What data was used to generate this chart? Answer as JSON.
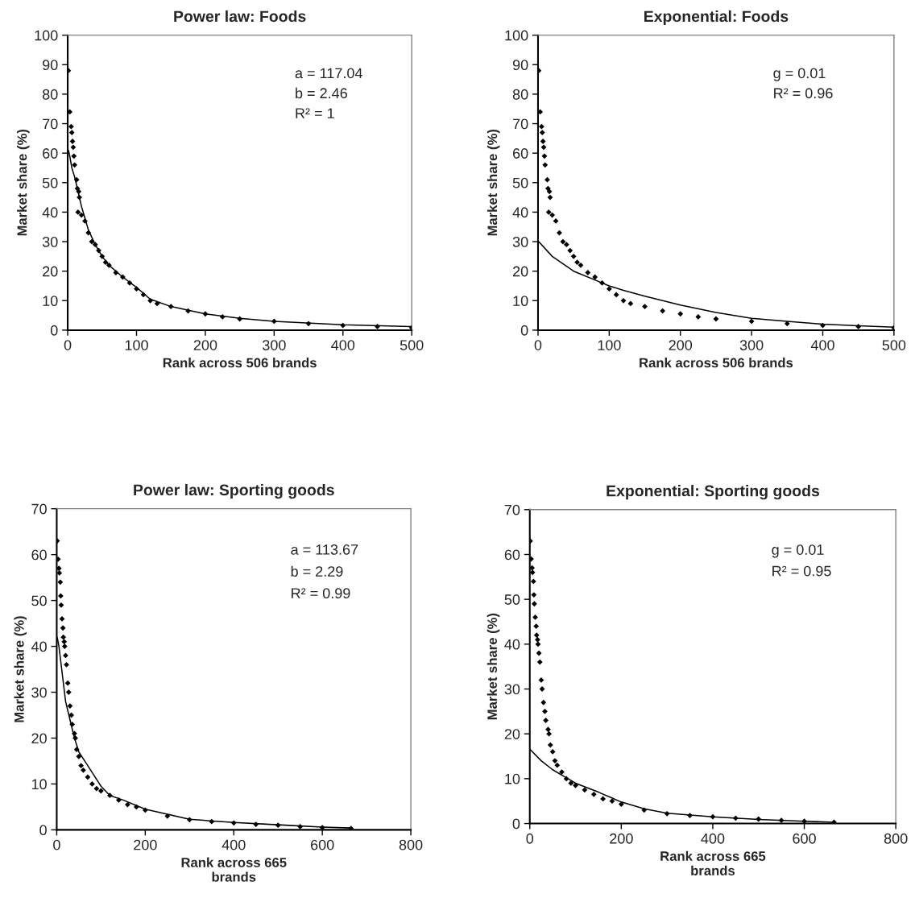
{
  "chart_data": [
    {
      "type": "scatter",
      "title": "Power law: Foods",
      "xlabel": "Rank across 506 brands",
      "ylabel": "Market share (%)",
      "xlim": [
        0,
        500
      ],
      "ylim": [
        0,
        100
      ],
      "xticks": [
        0,
        100,
        200,
        300,
        400,
        500
      ],
      "yticks": [
        0,
        10,
        20,
        30,
        40,
        50,
        60,
        70,
        80,
        90,
        100
      ],
      "grid": false,
      "annotations": [
        "a = 117.04",
        "b = 2.46",
        "R² = 1"
      ],
      "series": [
        {
          "marker": "diamond",
          "color": "#000000",
          "x": [
            1,
            3,
            5,
            6,
            7,
            8,
            9,
            10,
            13,
            14,
            16,
            17,
            15,
            20,
            25,
            30,
            35,
            40,
            45,
            50,
            55,
            60,
            70,
            80,
            90,
            100,
            110,
            120,
            130,
            150,
            175,
            200,
            225,
            250,
            300,
            350,
            400,
            450,
            500
          ],
          "values": [
            88,
            74,
            69,
            67,
            64,
            62,
            59,
            56,
            51,
            48,
            47,
            45,
            40,
            39,
            37,
            33,
            30,
            29,
            27,
            25,
            23,
            22,
            19.5,
            18,
            16,
            14,
            12,
            10,
            9,
            8,
            6.5,
            5.5,
            4.5,
            3.8,
            3,
            2.2,
            1.6,
            1.2,
            0.8
          ]
        },
        {
          "type": "line",
          "line_style": "solid",
          "color": "#000000",
          "x": [
            1,
            3,
            6,
            10,
            15,
            20,
            25,
            30,
            40,
            50,
            60,
            80,
            100,
            120,
            150,
            200,
            250,
            300,
            400,
            500
          ],
          "values": [
            61,
            59,
            55,
            52,
            47,
            42,
            38,
            34,
            29,
            25,
            22,
            18,
            14.5,
            10.5,
            8,
            5.5,
            4,
            3,
            1.8,
            1.2
          ]
        }
      ]
    },
    {
      "type": "scatter",
      "title": "Exponential: Foods",
      "xlabel": "Rank across 506 brands",
      "ylabel": "Market share (%)",
      "xlim": [
        0,
        500
      ],
      "ylim": [
        0,
        100
      ],
      "xticks": [
        0,
        100,
        200,
        300,
        400,
        500
      ],
      "yticks": [
        0,
        10,
        20,
        30,
        40,
        50,
        60,
        70,
        80,
        90,
        100
      ],
      "grid": false,
      "annotations": [
        "g = 0.01",
        "R² = 0.96"
      ],
      "series": [
        {
          "marker": "diamond",
          "color": "#000000",
          "x": [
            1,
            3,
            5,
            6,
            7,
            8,
            9,
            10,
            13,
            14,
            16,
            17,
            15,
            20,
            25,
            30,
            35,
            40,
            45,
            50,
            55,
            60,
            70,
            80,
            90,
            100,
            110,
            120,
            130,
            150,
            175,
            200,
            225,
            250,
            300,
            350,
            400,
            450,
            500
          ],
          "values": [
            88,
            74,
            69,
            67,
            64,
            62,
            59,
            56,
            51,
            48,
            47,
            45,
            40,
            39,
            37,
            33,
            30,
            29,
            27,
            25,
            23,
            22,
            19.5,
            18,
            16,
            14,
            12,
            10,
            9,
            8,
            6.5,
            5.5,
            4.5,
            3.8,
            3,
            2.2,
            1.6,
            1.2,
            0.8
          ]
        },
        {
          "type": "line",
          "line_style": "solid",
          "color": "#000000",
          "x": [
            1,
            20,
            50,
            80,
            100,
            120,
            150,
            200,
            250,
            300,
            350,
            400,
            450,
            500
          ],
          "values": [
            30,
            25,
            20,
            17,
            15,
            13.5,
            11.5,
            8.5,
            6,
            4,
            3,
            2,
            1.5,
            1
          ]
        }
      ]
    },
    {
      "type": "scatter",
      "title": "Power law: Sporting goods",
      "xlabel": "Rank across 665\nbrands",
      "ylabel": "Market share (%)",
      "xlim": [
        0,
        800
      ],
      "ylim": [
        0,
        70
      ],
      "xticks": [
        0,
        200,
        400,
        600,
        800
      ],
      "yticks": [
        0,
        10,
        20,
        30,
        40,
        50,
        60,
        70
      ],
      "grid": false,
      "annotations": [
        "a = 113.67",
        "b = 2.29",
        "R² = 0.99"
      ],
      "series": [
        {
          "marker": "diamond",
          "color": "#000000",
          "x": [
            1,
            3,
            5,
            6,
            8,
            9,
            10,
            12,
            14,
            15,
            17,
            18,
            20,
            22,
            25,
            27,
            30,
            33,
            35,
            40,
            42,
            45,
            50,
            55,
            60,
            70,
            80,
            90,
            100,
            120,
            140,
            160,
            180,
            200,
            250,
            300,
            350,
            400,
            450,
            500,
            550,
            600,
            665
          ],
          "values": [
            63,
            59,
            57,
            56,
            54,
            51,
            49,
            46,
            44,
            42,
            41,
            40,
            38,
            36,
            32,
            30,
            27,
            25,
            23,
            21,
            20,
            17.5,
            16,
            14,
            13,
            11.5,
            10,
            9,
            8.5,
            7.5,
            6.5,
            5.5,
            5,
            4.3,
            3,
            2.2,
            1.8,
            1.5,
            1.2,
            1,
            0.7,
            0.5,
            0.3
          ]
        },
        {
          "type": "line",
          "line_style": "solid",
          "color": "#000000",
          "x": [
            1,
            5,
            10,
            15,
            20,
            30,
            40,
            50,
            60,
            80,
            100,
            120,
            150,
            200,
            300,
            400,
            500,
            600,
            665
          ],
          "values": [
            42,
            40,
            36,
            32,
            28,
            24,
            20,
            17,
            15.5,
            12.5,
            9.5,
            7.5,
            6.5,
            4.5,
            2.3,
            1.6,
            1.1,
            0.6,
            0.4
          ]
        }
      ]
    },
    {
      "type": "scatter",
      "title": "Exponential: Sporting goods",
      "xlabel": "Rank across 665\nbrands",
      "ylabel": "Market share (%)",
      "xlim": [
        0,
        800
      ],
      "ylim": [
        0,
        70
      ],
      "xticks": [
        0,
        200,
        400,
        600,
        800
      ],
      "yticks": [
        0,
        10,
        20,
        30,
        40,
        50,
        60,
        70
      ],
      "grid": false,
      "annotations": [
        "g = 0.01",
        "R² = 0.95"
      ],
      "series": [
        {
          "marker": "diamond",
          "color": "#000000",
          "x": [
            1,
            3,
            5,
            6,
            8,
            9,
            10,
            12,
            14,
            15,
            17,
            18,
            20,
            22,
            25,
            27,
            30,
            33,
            35,
            40,
            42,
            45,
            50,
            55,
            60,
            70,
            80,
            90,
            100,
            120,
            140,
            160,
            180,
            200,
            250,
            300,
            350,
            400,
            450,
            500,
            550,
            600,
            665
          ],
          "values": [
            63,
            59,
            57,
            56,
            54,
            51,
            49,
            46,
            44,
            42,
            41,
            40,
            38,
            36,
            32,
            30,
            27,
            25,
            23,
            21,
            20,
            17.5,
            16,
            14,
            13,
            11.5,
            10,
            9,
            8.5,
            7.5,
            6.5,
            5.5,
            5,
            4.3,
            3,
            2.2,
            1.8,
            1.5,
            1.2,
            1,
            0.7,
            0.5,
            0.3
          ]
        },
        {
          "type": "line",
          "line_style": "solid",
          "color": "#000000",
          "x": [
            1,
            25,
            50,
            75,
            100,
            150,
            200,
            250,
            300,
            400,
            500,
            600,
            665
          ],
          "values": [
            16.5,
            14,
            12,
            10.5,
            9,
            7,
            4.8,
            3.3,
            2.3,
            1.5,
            0.9,
            0.5,
            0.3
          ]
        }
      ]
    }
  ]
}
